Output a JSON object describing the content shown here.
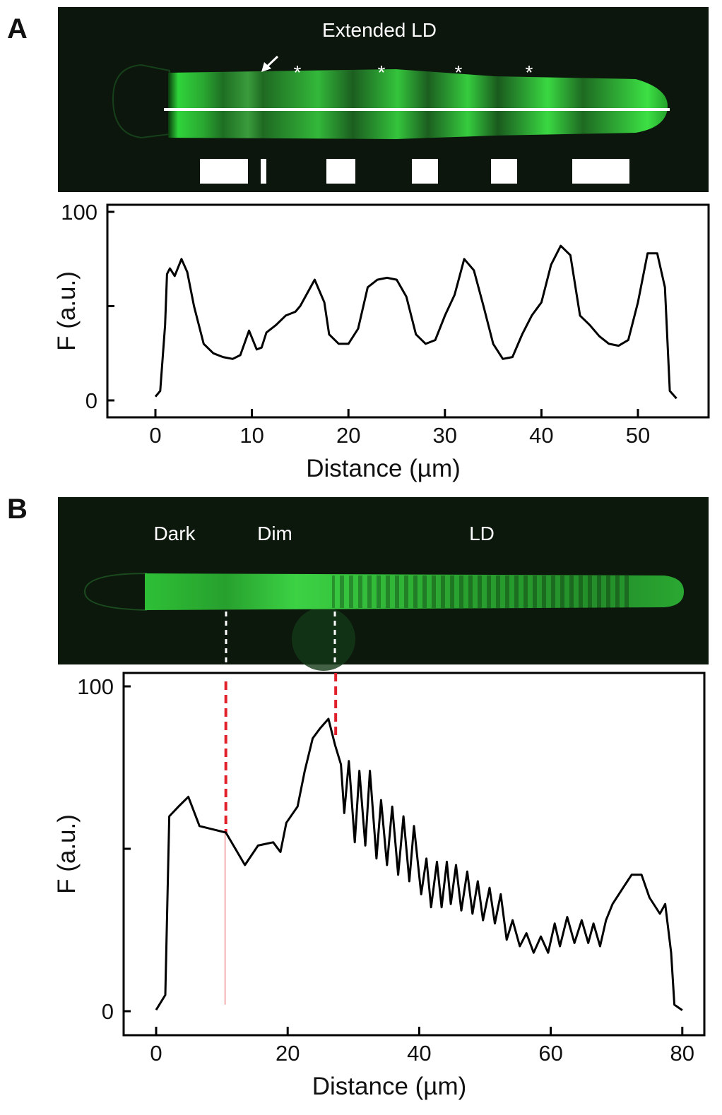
{
  "panels": {
    "a": {
      "label": "A",
      "image_title": "Extended LD",
      "marker": "*",
      "arrow": "arrow"
    },
    "b": {
      "label": "B",
      "image_labels": [
        "Dark",
        "Dim",
        "LD"
      ]
    }
  },
  "colors": {
    "curve": "#000000",
    "marker_line": "#e0202a",
    "cell_green": "#2fd43a"
  },
  "chart_data": [
    {
      "type": "line",
      "panel": "A",
      "xlabel": "Distance (µm)",
      "ylabel": "F (a.u.)",
      "xlim": [
        -5,
        58
      ],
      "ylim": [
        0,
        100
      ],
      "xticks": [
        "0",
        "10",
        "20",
        "30",
        "40",
        "50"
      ],
      "xtick_values": [
        0,
        10,
        20,
        30,
        40,
        50
      ],
      "yticks": [
        "0",
        "",
        "100"
      ],
      "ytick_values": [
        0,
        50,
        100
      ],
      "x": [
        0,
        0.5,
        1,
        1.2,
        1.5,
        2,
        2.7,
        3.3,
        4,
        5,
        6,
        7,
        8,
        8.8,
        9.7,
        10.5,
        11,
        11.5,
        12.5,
        13.5,
        14.5,
        15,
        16.5,
        17.5,
        18,
        19,
        20,
        21,
        22,
        23,
        24,
        25,
        26,
        27,
        28,
        29,
        30,
        31,
        32,
        33,
        34,
        35,
        36,
        37,
        38,
        39,
        40,
        41,
        42,
        43,
        44,
        45,
        46,
        47,
        48,
        49,
        50,
        51,
        52,
        52.8,
        53.3,
        54
      ],
      "y": [
        2,
        5,
        40,
        67,
        70,
        66,
        75,
        68,
        50,
        30,
        25,
        23,
        22,
        24,
        37,
        27,
        28,
        36,
        40,
        45,
        47,
        50,
        64,
        52,
        35,
        30,
        30,
        38,
        60,
        64,
        65,
        64,
        55,
        35,
        30,
        32,
        45,
        56,
        75,
        69,
        50,
        30,
        22,
        23,
        35,
        45,
        52,
        72,
        82,
        77,
        45,
        40,
        34,
        30,
        29,
        32,
        52,
        78,
        78,
        60,
        5,
        1
      ]
    },
    {
      "type": "line",
      "panel": "B",
      "xlabel": "Distance (µm)",
      "ylabel": "F (a.u.)",
      "xlim": [
        -5,
        83
      ],
      "ylim": [
        0,
        100
      ],
      "xticks": [
        "0",
        "20",
        "40",
        "60",
        "80"
      ],
      "xtick_values": [
        0,
        20,
        40,
        60,
        80
      ],
      "yticks": [
        "0",
        "",
        "100"
      ],
      "ytick_values": [
        0,
        50,
        100
      ],
      "markers_x": [
        10.6,
        27.3
      ],
      "x": [
        0,
        1.4,
        2,
        3.4,
        4.9,
        6.6,
        8.6,
        10.6,
        13.5,
        15.5,
        17.8,
        18.9,
        19.8,
        21.5,
        22.6,
        23.8,
        24.9,
        26.2,
        27.2,
        28.1,
        28.6,
        29.3,
        30.2,
        30.9,
        31.8,
        32.5,
        33.5,
        34.2,
        35.1,
        35.9,
        36.8,
        37.6,
        38.5,
        39.2,
        40.3,
        41.1,
        41.8,
        42.7,
        43.4,
        44.2,
        44.8,
        45.6,
        46.4,
        47.3,
        48.1,
        48.9,
        49.7,
        50.7,
        51.5,
        52.4,
        53.3,
        54.2,
        55.3,
        56.3,
        57.4,
        58.5,
        59.6,
        60.6,
        61.4,
        62.5,
        63.6,
        64.7,
        65.7,
        66.5,
        67.5,
        68.4,
        69.4,
        71,
        72.3,
        73.8,
        75,
        76.6,
        77.4,
        78.3,
        78.8,
        80
      ],
      "y": [
        0.4,
        5,
        60,
        63,
        66,
        57,
        56,
        55,
        45,
        51,
        52,
        49,
        58,
        63,
        74,
        84,
        87,
        90,
        82,
        76,
        61,
        77,
        52,
        74,
        51,
        74,
        47,
        65,
        45,
        63,
        42,
        60,
        40,
        57,
        36,
        47,
        32,
        46,
        32,
        46,
        33,
        45,
        31,
        43,
        30,
        40,
        28,
        38,
        27,
        36,
        22,
        28,
        20,
        24,
        18,
        23,
        18,
        27,
        20,
        29,
        21,
        28,
        21,
        27,
        20,
        28,
        33,
        38,
        42,
        42,
        35,
        30,
        33,
        18,
        2,
        0.3
      ]
    }
  ]
}
